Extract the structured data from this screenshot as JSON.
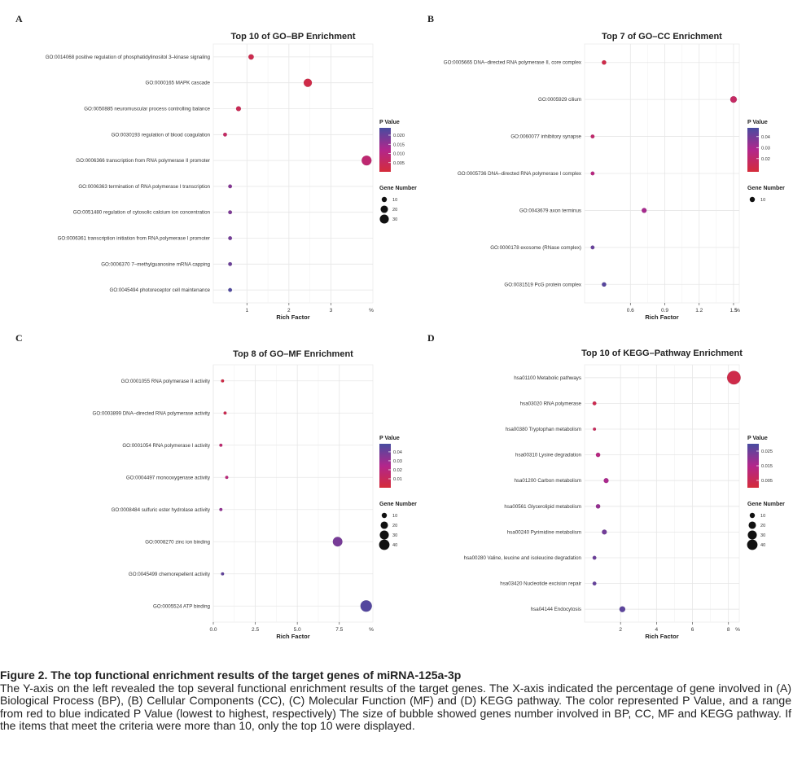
{
  "panel_letters": [
    "A",
    "B",
    "C",
    "D"
  ],
  "legend_labels": {
    "pvalue_title": "P Value",
    "size_title": "Gene Number"
  },
  "chart_data": [
    {
      "type": "scatter",
      "panel": "A",
      "title": "Top 10 of GO–BP Enrichment",
      "xlabel": "Rich Factor",
      "x_unit": "%",
      "xlim": [
        0.2,
        4.0
      ],
      "xticks": [
        1,
        2,
        3
      ],
      "grid": true,
      "categories": [
        "GO:0014068 positive regulation of phosphatidylinositol 3–kinase signaling",
        "GO:0000165 MAPK cascade",
        "GO:0050885 neuromuscular process controlling balance",
        "GO:0030193 regulation of blood coagulation",
        "GO:0006366 transcription from RNA polymerase II promoter",
        "GO:0006363 termination of RNA polymerase I transcription",
        "GO:0051480 regulation of cytosolic calcium ion concentration",
        "GO:0006361 transcription initiation from RNA polymerase I promoter",
        "GO:0006370 7–methylguanosine mRNA capping",
        "GO:0045494 photoreceptor cell maintenance"
      ],
      "x": [
        1.1,
        2.45,
        0.8,
        0.48,
        3.85,
        0.6,
        0.6,
        0.6,
        0.6,
        0.6
      ],
      "p_value": [
        0.003,
        0.002,
        0.004,
        0.006,
        0.008,
        0.017,
        0.018,
        0.019,
        0.02,
        0.023
      ],
      "gene_number": [
        6,
        14,
        5,
        3,
        20,
        3,
        3,
        3,
        3,
        3
      ],
      "color_scale": {
        "min": 0.0,
        "max": 0.024,
        "ticks": [
          0.005,
          0.01,
          0.015,
          0.02
        ],
        "tick_labels": [
          "0.005",
          "0.010",
          "0.015",
          "0.020"
        ]
      },
      "size_scale": {
        "max": 36,
        "ticks": [
          10,
          20,
          30
        ],
        "tick_labels": [
          "10",
          "20",
          "30"
        ]
      }
    },
    {
      "type": "scatter",
      "panel": "B",
      "title": "Top 7 of GO–CC Enrichment",
      "xlabel": "Rich Factor",
      "x_unit": "%",
      "xlim": [
        0.2,
        1.55
      ],
      "xticks": [
        0.6,
        0.9,
        1.2,
        1.5
      ],
      "grid": true,
      "categories": [
        "GO:0005665 DNA–directed RNA polymerase II, core complex",
        "GO:0005929 cilium",
        "GO:0060077 inhibitory synapse",
        "GO:0005736 DNA–directed RNA polymerase I complex",
        "GO:0043679 axon terminus",
        "GO:0000178 exosome (RNase complex)",
        "GO:0031519 PcG protein complex"
      ],
      "x": [
        0.37,
        1.5,
        0.27,
        0.27,
        0.72,
        0.27,
        0.37
      ],
      "p_value": [
        0.012,
        0.018,
        0.02,
        0.025,
        0.03,
        0.042,
        0.045
      ],
      "gene_number": [
        4,
        9,
        3,
        3,
        5,
        3,
        4
      ],
      "color_scale": {
        "min": 0.008,
        "max": 0.048,
        "ticks": [
          0.02,
          0.03,
          0.04
        ],
        "tick_labels": [
          "0.02",
          "0.03",
          "0.04"
        ]
      },
      "size_scale": {
        "max": 22,
        "ticks": [
          10
        ],
        "tick_labels": [
          "10"
        ]
      }
    },
    {
      "type": "scatter",
      "panel": "C",
      "title": "Top 8 of GO–MF Enrichment",
      "xlabel": "Rich Factor",
      "x_unit": "%",
      "xlim": [
        0,
        9.5
      ],
      "xticks": [
        0,
        2.5,
        5,
        7.5
      ],
      "xtick_labels": [
        "0.0",
        "2.5",
        "5.0",
        "7.5"
      ],
      "grid": true,
      "categories": [
        "GO:0001055 RNA polymerase II activity",
        "GO:0003899 DNA–directed RNA polymerase activity",
        "GO:0001054 RNA polymerase I activity",
        "GO:0004497 monooxygenase activity",
        "GO:0008484 sulfuric ester hydrolase activity",
        "GO:0008270 zinc ion binding",
        "GO:0045499 chemorepellent activity",
        "GO:0005524 ATP binding"
      ],
      "x": [
        0.55,
        0.7,
        0.45,
        0.8,
        0.45,
        7.4,
        0.55,
        9.1
      ],
      "p_value": [
        0.004,
        0.007,
        0.016,
        0.019,
        0.032,
        0.038,
        0.043,
        0.046
      ],
      "gene_number": [
        2,
        2,
        2,
        2,
        2,
        19,
        2,
        27
      ],
      "color_scale": {
        "min": 0.0,
        "max": 0.049,
        "ticks": [
          0.01,
          0.02,
          0.03,
          0.04
        ],
        "tick_labels": [
          "0.01",
          "0.02",
          "0.03",
          "0.04"
        ]
      },
      "size_scale": {
        "max": 40,
        "ticks": [
          10,
          20,
          30,
          40
        ],
        "tick_labels": [
          "10",
          "20",
          "30",
          "40"
        ]
      }
    },
    {
      "type": "scatter",
      "panel": "D",
      "title": "Top 10 of KEGG–Pathway Enrichment",
      "xlabel": "Rich Factor",
      "x_unit": "%",
      "xlim": [
        0,
        8.6
      ],
      "xticks": [
        2,
        4,
        6,
        8
      ],
      "grid": true,
      "categories": [
        "hsa01100 Metabolic pathways",
        "hsa03020 RNA polymerase",
        "hsa00380 Tryptophan metabolism",
        "hsa00310 Lysine degradation",
        "hsa01200 Carbon metabolism",
        "hsa00561 Glycerolipid metabolism",
        "hsa00240 Pyrimidine metabolism",
        "hsa00280 Valine, leucine and isoleucine degradation",
        "hsa03420 Nucleotide excision repair",
        "hsa04144 Endocytosis"
      ],
      "x": [
        8.3,
        0.55,
        0.55,
        0.75,
        1.2,
        0.75,
        1.1,
        0.55,
        0.55,
        2.1
      ],
      "p_value": [
        0.003,
        0.004,
        0.006,
        0.013,
        0.016,
        0.019,
        0.024,
        0.025,
        0.026,
        0.027
      ],
      "gene_number": [
        38,
        3,
        2,
        4,
        5,
        4,
        5,
        3,
        3,
        7
      ],
      "color_scale": {
        "min": 0.0,
        "max": 0.03,
        "ticks": [
          0.005,
          0.015,
          0.025
        ],
        "tick_labels": [
          "0.005",
          "0.015",
          "0.025"
        ]
      },
      "size_scale": {
        "max": 44,
        "ticks": [
          10,
          20,
          30,
          40
        ],
        "tick_labels": [
          "10",
          "20",
          "30",
          "40"
        ]
      }
    }
  ],
  "caption": {
    "title": "Figure 2. The top functional enrichment results of the target genes of miRNA-125a-3p",
    "body": "The Y-axis on the left revealed the top several functional enrichment results of the target genes. The X-axis indicated the percentage of gene involved in (A) Biological Process (BP), (B) Cellular Components (CC), (C) Molecular Function (MF) and (D) KEGG pathway. The color represented P Value, and a range from red to blue indicated P Value (lowest to highest, respectively) The size of bubble showed genes number involved in BP, CC, MF and KEGG pathway. If the items that meet the criteria were more than 10, only the top 10 were displayed."
  }
}
